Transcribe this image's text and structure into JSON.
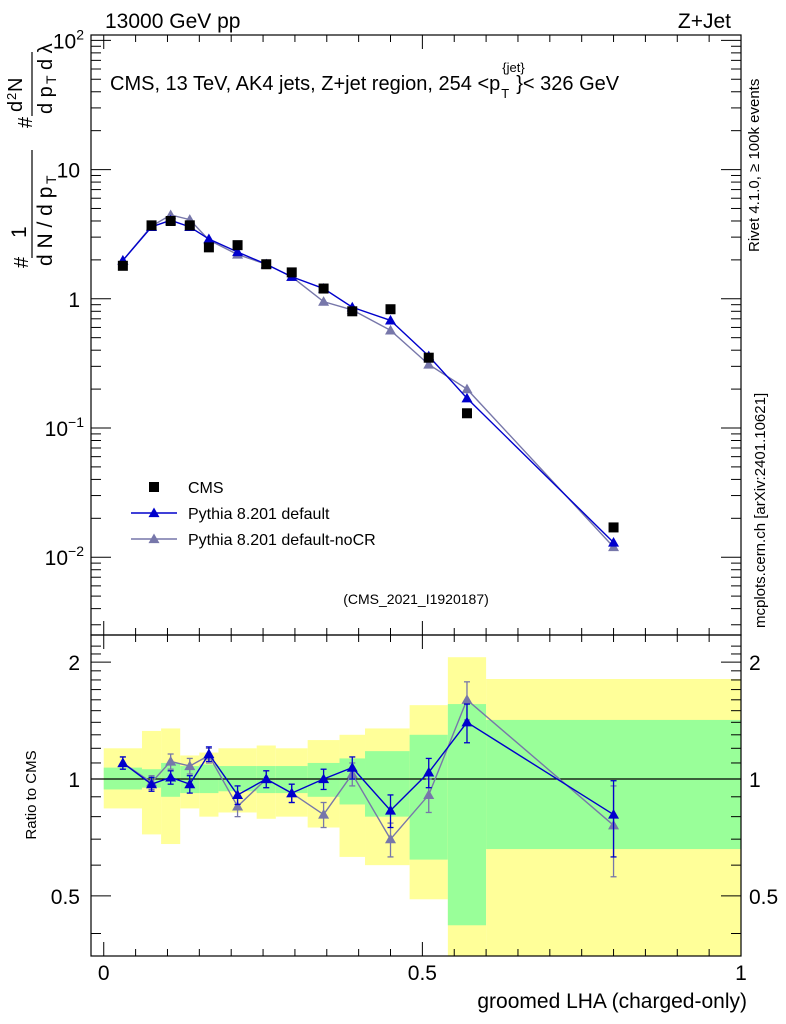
{
  "header": {
    "left": "13000 GeV pp",
    "right": "Z+Jet"
  },
  "side_labels": {
    "rivet": "Rivet 4.1.0, ≥ 100k events",
    "mcplots": "mcplots.cern.ch [arXiv:2401.10621]"
  },
  "chart_data": {
    "type": "line",
    "title": "CMS, 13 TeV, AK4 jets, Z+jet region, 254 <p",
    "title_sub": "T",
    "title_sup": "{jet}",
    "title_tail": "}< 326 GeV",
    "analysis_id": "(CMS_2021_I1920187)",
    "xlabel": "groomed LHA (charged-only)",
    "ylabel_ratio": "Ratio to CMS",
    "xlim": [
      -0.02,
      1.0
    ],
    "xticks": [
      "0",
      "0.5",
      "1"
    ],
    "main": {
      "yscale": "log",
      "ylim": [
        0.0025,
        110
      ],
      "yticks": [
        {
          "base": "10",
          "exp": "−2",
          "value": 0.01
        },
        {
          "base": "10",
          "exp": "−1",
          "value": 0.1
        },
        {
          "base": "1",
          "exp": "",
          "value": 1
        },
        {
          "base": "10",
          "exp": "",
          "value": 10
        },
        {
          "base": "10",
          "exp": "2",
          "value": 100
        }
      ]
    },
    "ratio": {
      "yscale": "log",
      "ylim": [
        0.35,
        2.35
      ],
      "yticks": [
        "0.5",
        "1",
        "2"
      ]
    },
    "legend": [
      {
        "label": "CMS",
        "color": "#000000",
        "marker": "square"
      },
      {
        "label": "Pythia 8.201 default",
        "color": "#0000cc",
        "marker": "triangle"
      },
      {
        "label": "Pythia 8.201 default-noCR",
        "color": "#7777aa",
        "marker": "triangle"
      }
    ],
    "bins": [
      {
        "lo": 0.0,
        "hi": 0.06
      },
      {
        "lo": 0.06,
        "hi": 0.09
      },
      {
        "lo": 0.09,
        "hi": 0.12
      },
      {
        "lo": 0.12,
        "hi": 0.15
      },
      {
        "lo": 0.15,
        "hi": 0.18
      },
      {
        "lo": 0.18,
        "hi": 0.24
      },
      {
        "lo": 0.24,
        "hi": 0.27
      },
      {
        "lo": 0.27,
        "hi": 0.32
      },
      {
        "lo": 0.32,
        "hi": 0.37
      },
      {
        "lo": 0.37,
        "hi": 0.41
      },
      {
        "lo": 0.41,
        "hi": 0.48
      },
      {
        "lo": 0.48,
        "hi": 0.54
      },
      {
        "lo": 0.54,
        "hi": 0.6
      },
      {
        "lo": 0.6,
        "hi": 1.0
      }
    ],
    "data": {
      "name": "CMS",
      "x": [
        0.03,
        0.075,
        0.105,
        0.135,
        0.165,
        0.21,
        0.255,
        0.295,
        0.345,
        0.39,
        0.45,
        0.51,
        0.57,
        0.8
      ],
      "y": [
        1.8,
        3.7,
        4.0,
        3.7,
        2.5,
        2.6,
        1.85,
        1.6,
        1.2,
        0.8,
        0.83,
        0.35,
        0.13,
        0.017
      ]
    },
    "series": [
      {
        "name": "Pythia 8.201 default",
        "x": [
          0.03,
          0.075,
          0.105,
          0.135,
          0.165,
          0.21,
          0.255,
          0.295,
          0.345,
          0.39,
          0.45,
          0.51,
          0.57,
          0.8
        ],
        "y": [
          1.98,
          3.6,
          4.05,
          3.6,
          2.9,
          2.3,
          1.85,
          1.48,
          1.2,
          0.86,
          0.68,
          0.36,
          0.17,
          0.013
        ],
        "ratio": [
          1.1,
          0.97,
          1.01,
          0.97,
          1.16,
          0.91,
          1.0,
          0.92,
          1.0,
          1.07,
          0.83,
          1.04,
          1.4,
          0.81
        ],
        "ratio_err": [
          0.04,
          0.04,
          0.04,
          0.05,
          0.05,
          0.05,
          0.05,
          0.05,
          0.06,
          0.07,
          0.08,
          0.09,
          0.16,
          0.18
        ]
      },
      {
        "name": "Pythia 8.201 default-noCR",
        "x": [
          0.03,
          0.075,
          0.105,
          0.135,
          0.165,
          0.21,
          0.255,
          0.295,
          0.345,
          0.39,
          0.45,
          0.51,
          0.57,
          0.8
        ],
        "y": [
          1.98,
          3.65,
          4.45,
          4.1,
          2.85,
          2.2,
          1.85,
          1.48,
          0.95,
          0.82,
          0.57,
          0.31,
          0.2,
          0.012
        ],
        "ratio": [
          1.1,
          0.98,
          1.11,
          1.08,
          1.15,
          0.85,
          1.0,
          0.92,
          0.81,
          1.03,
          0.7,
          0.91,
          1.6,
          0.76
        ],
        "ratio_err": [
          0.04,
          0.04,
          0.05,
          0.05,
          0.05,
          0.05,
          0.05,
          0.05,
          0.06,
          0.07,
          0.07,
          0.09,
          0.18,
          0.2
        ]
      }
    ],
    "uncertainty_bands": {
      "green_lo": [
        0.94,
        0.95,
        0.9,
        0.92,
        0.92,
        0.93,
        0.92,
        0.92,
        0.9,
        0.86,
        0.8,
        0.62,
        0.42,
        0.66
      ],
      "green_hi": [
        1.07,
        1.06,
        1.1,
        1.08,
        1.09,
        1.08,
        1.08,
        1.08,
        1.1,
        1.13,
        1.18,
        1.3,
        1.56,
        1.42
      ],
      "yellow_lo": [
        0.84,
        0.72,
        0.68,
        0.84,
        0.8,
        0.82,
        0.79,
        0.8,
        0.75,
        0.63,
        0.6,
        0.49,
        0.34,
        0.34
      ],
      "yellow_hi": [
        1.2,
        1.33,
        1.35,
        1.15,
        1.17,
        1.2,
        1.22,
        1.2,
        1.26,
        1.3,
        1.35,
        1.55,
        2.06,
        1.81
      ]
    },
    "colors": {
      "green": "#99ff99",
      "yellow": "#ffff99",
      "default": "#0000cc",
      "nocr": "#7777aa",
      "data": "#000000",
      "analysis_id": "#999999",
      "side_text": "#888888"
    }
  }
}
